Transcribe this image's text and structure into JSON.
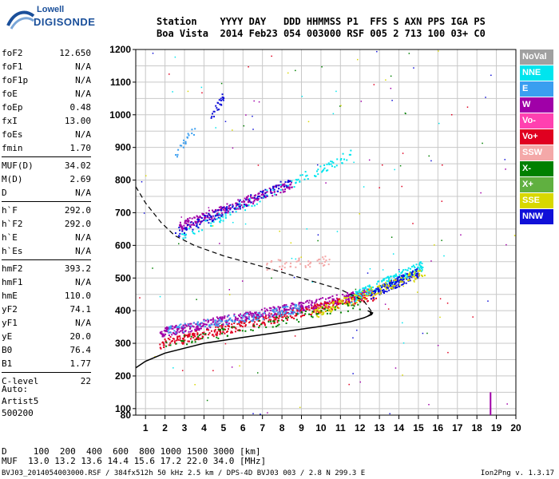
{
  "logo": {
    "top": "Lowell",
    "bottom": "DIGISONDE"
  },
  "header": {
    "line1": "Station    YYYY DAY   DDD HHMMSS P1  FFS S AXN PPS IGA PS",
    "line2": "Boa Vista  2014 Feb23 054 003000 RSF 005 2 713 100 03+ C0"
  },
  "params": [
    {
      "group": [
        {
          "k": "foF2",
          "v": "12.650"
        },
        {
          "k": "foF1",
          "v": "N/A"
        },
        {
          "k": "foF1p",
          "v": "N/A"
        },
        {
          "k": "foE",
          "v": "N/A"
        },
        {
          "k": "foEp",
          "v": "0.48"
        },
        {
          "k": "fxI",
          "v": "13.00"
        },
        {
          "k": "foEs",
          "v": "N/A"
        },
        {
          "k": "fmin",
          "v": "1.70"
        }
      ]
    },
    {
      "group": [
        {
          "k": "MUF(D)",
          "v": "34.02"
        },
        {
          "k": "M(D)",
          "v": "2.69"
        },
        {
          "k": "D",
          "v": "N/A"
        }
      ]
    },
    {
      "group": [
        {
          "k": "h`F",
          "v": "292.0"
        },
        {
          "k": "h`F2",
          "v": "292.0"
        },
        {
          "k": "h`E",
          "v": "N/A"
        },
        {
          "k": "h`Es",
          "v": "N/A"
        }
      ]
    },
    {
      "group": [
        {
          "k": "hmF2",
          "v": "393.2"
        },
        {
          "k": "hmF1",
          "v": "N/A"
        },
        {
          "k": "hmE",
          "v": "110.0"
        },
        {
          "k": "yF2",
          "v": "74.1"
        },
        {
          "k": "yF1",
          "v": "N/A"
        },
        {
          "k": "yE",
          "v": "20.0"
        },
        {
          "k": "B0",
          "v": "76.4"
        },
        {
          "k": "B1",
          "v": "1.77"
        }
      ]
    },
    {
      "group": [
        {
          "k": "C-level",
          "v": "22"
        }
      ]
    }
  ],
  "auto": {
    "l1": "Auto:",
    "l2": "Artist5",
    "l3": "500200"
  },
  "table": {
    "row1": "D     100  200  400  600  800 1000 1500 3000 [km]",
    "row2": "MUF  13.0 13.2 13.6 14.4 15.6 17.2 22.0 34.0 [MHz]"
  },
  "footer": "BVJ03_2014054003000.RSF / 384fx512h 50 kHz 2.5 km / DPS-4D BVJ03 003 / 2.8 N 299.3 E",
  "version": "Ion2Png v. 1.3.17",
  "legend": [
    {
      "label": "NoVal",
      "color": "#a0a0a0"
    },
    {
      "label": "NNE",
      "color": "#00e5ee"
    },
    {
      "label": "E",
      "color": "#3a9ef0"
    },
    {
      "label": "W",
      "color": "#a000a8"
    },
    {
      "label": "Vo-",
      "color": "#ff40b0"
    },
    {
      "label": "Vo+",
      "color": "#e00020"
    },
    {
      "label": "SSW",
      "color": "#f4a8a8"
    },
    {
      "label": "X-",
      "color": "#008000"
    },
    {
      "label": "X+",
      "color": "#60b040"
    },
    {
      "label": "SSE",
      "color": "#d8d800"
    },
    {
      "label": "NNW",
      "color": "#1010d8"
    }
  ],
  "chart_data": {
    "type": "scatter",
    "title": "",
    "xlabel": "",
    "ylabel": "",
    "xlim": [
      0.5,
      20
    ],
    "ylim": [
      80,
      1200
    ],
    "xticks": [
      1,
      2,
      3,
      4,
      5,
      6,
      7,
      8,
      9,
      10,
      11,
      12,
      13,
      14,
      15,
      16,
      17,
      18,
      19,
      20
    ],
    "yticks": [
      80,
      100,
      200,
      300,
      400,
      500,
      600,
      700,
      800,
      900,
      1000,
      1100,
      1200
    ],
    "grid": true,
    "series": [
      {
        "name": "W",
        "color": "#a000a8",
        "kind": "band",
        "x": [
          1.7,
          12.5
        ],
        "y": [
          335,
          455
        ],
        "n": 520
      },
      {
        "name": "Vo+",
        "color": "#e00020",
        "kind": "band",
        "x": [
          1.7,
          12.8
        ],
        "y": [
          300,
          450
        ],
        "n": 380
      },
      {
        "name": "NNE",
        "color": "#00e5ee",
        "kind": "band",
        "x": [
          11.5,
          15.2
        ],
        "y": [
          440,
          540
        ],
        "n": 160
      },
      {
        "name": "E",
        "color": "#3a9ef0",
        "kind": "band",
        "x": [
          2.0,
          9.0
        ],
        "y": [
          340,
          410
        ],
        "n": 140
      },
      {
        "name": "NNW",
        "color": "#1010d8",
        "kind": "band",
        "x": [
          12.5,
          15.0
        ],
        "y": [
          450,
          520
        ],
        "n": 150
      },
      {
        "name": "SSE",
        "color": "#d8d800",
        "kind": "band",
        "x": [
          9.5,
          15.3
        ],
        "y": [
          390,
          520
        ],
        "n": 140
      },
      {
        "name": "X-",
        "color": "#008000",
        "kind": "band",
        "x": [
          2.0,
          12.0
        ],
        "y": [
          300,
          420
        ],
        "n": 90
      },
      {
        "name": "SSW",
        "color": "#f4a8a8",
        "kind": "band",
        "x": [
          7.0,
          10.5
        ],
        "y": [
          540,
          555
        ],
        "n": 50
      },
      {
        "name": "W",
        "color": "#a000a8",
        "kind": "band",
        "x": [
          2.7,
          8.5
        ],
        "y": [
          660,
          790
        ],
        "n": 240
      },
      {
        "name": "NNE",
        "color": "#00e5ee",
        "kind": "band",
        "x": [
          2.8,
          11.5
        ],
        "y": [
          630,
          880
        ],
        "n": 110
      },
      {
        "name": "NNW",
        "color": "#1010d8",
        "kind": "band",
        "x": [
          2.5,
          8.5
        ],
        "y": [
          640,
          800
        ],
        "n": 120
      },
      {
        "name": "E",
        "color": "#3a9ef0",
        "kind": "band",
        "x": [
          2.5,
          3.5
        ],
        "y": [
          880,
          960
        ],
        "n": 20
      },
      {
        "name": "NNW",
        "color": "#1010d8",
        "kind": "band",
        "x": [
          4.3,
          5.0
        ],
        "y": [
          990,
          1060
        ],
        "n": 25
      }
    ],
    "profile_solid": {
      "x": [
        0.5,
        1.0,
        2.0,
        4.0,
        6.0,
        8.0,
        10.0,
        11.5,
        12.2,
        12.6,
        12.65,
        12.4
      ],
      "y": [
        225,
        245,
        270,
        300,
        318,
        335,
        352,
        366,
        378,
        388,
        393,
        400
      ]
    },
    "profile_dashed": {
      "x": [
        0.5,
        1.0,
        1.8,
        2.5,
        3.5,
        5.0,
        7.0,
        9.0,
        11.0,
        12.2,
        12.65,
        12.3
      ],
      "y": [
        780,
        730,
        670,
        630,
        600,
        568,
        535,
        500,
        465,
        430,
        393,
        380
      ]
    },
    "hline": {
      "x": [
        12.5,
        12.65
      ],
      "y": [
        393,
        393
      ]
    }
  }
}
